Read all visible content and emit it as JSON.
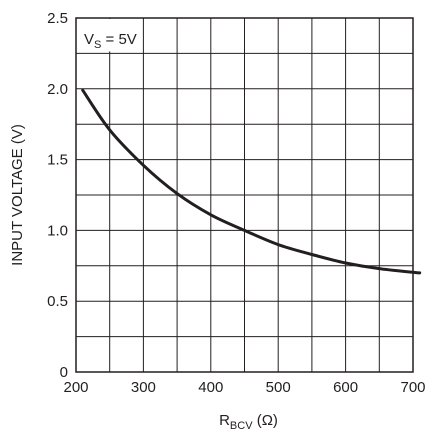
{
  "chart_data": {
    "type": "line",
    "xlabel_main": "R",
    "xlabel_sub": "BCV",
    "xlabel_unit": " (Ω)",
    "ylabel": "INPUT VOLTAGE (V)",
    "xlim": [
      200,
      700
    ],
    "ylim": [
      0,
      2.5
    ],
    "x_ticks": [
      "200",
      "300",
      "400",
      "500",
      "600",
      "700"
    ],
    "y_ticks": [
      "0",
      "0.5",
      "1.0",
      "1.5",
      "2.0",
      "2.5"
    ],
    "grid": true,
    "annotation": {
      "main": "V",
      "sub": "S",
      "rest": " = 5V"
    },
    "series": [
      {
        "x": [
          210,
          250,
          300,
          350,
          400,
          450,
          500,
          550,
          600,
          650,
          710
        ],
        "y": [
          1.99,
          1.71,
          1.46,
          1.26,
          1.11,
          1.0,
          0.9,
          0.83,
          0.77,
          0.73,
          0.7
        ]
      }
    ],
    "colors": {
      "line": "#231f20",
      "grid": "#231f20"
    }
  }
}
